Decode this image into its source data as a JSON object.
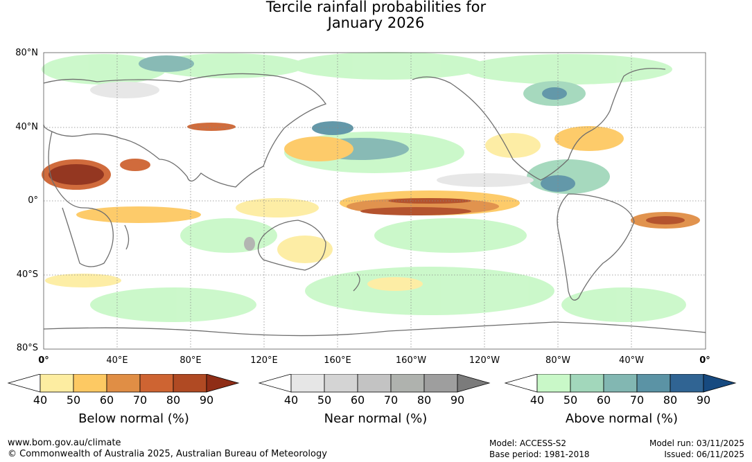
{
  "title": {
    "line1": "Tercile rainfall probabilities for",
    "line2": "January 2026"
  },
  "map": {
    "y_ticks": [
      "80°N",
      "40°N",
      "0°",
      "40°S",
      "80°S"
    ],
    "x_ticks": [
      "0°",
      "40°E",
      "80°E",
      "120°E",
      "160°E",
      "160°W",
      "120°W",
      "80°W",
      "40°W",
      "0°"
    ]
  },
  "legends": [
    {
      "name": "below",
      "title": "Below normal (%)",
      "labels": [
        "40",
        "50",
        "60",
        "70",
        "80",
        "90"
      ],
      "colors": [
        "#ffffff",
        "#fdeda1",
        "#fdc963",
        "#e08e45",
        "#ce6432",
        "#b04a23",
        "#8f2d16"
      ]
    },
    {
      "name": "near",
      "title": "Near normal (%)",
      "labels": [
        "40",
        "50",
        "60",
        "70",
        "80",
        "90"
      ],
      "colors": [
        "#ffffff",
        "#e6e6e6",
        "#d4d4d4",
        "#c3c3c3",
        "#afb2ae",
        "#9e9e9e",
        "#7b7b7b"
      ]
    },
    {
      "name": "above",
      "title": "Above normal (%)",
      "labels": [
        "40",
        "50",
        "60",
        "70",
        "80",
        "90"
      ],
      "colors": [
        "#ffffff",
        "#c9f8c8",
        "#a2d7bb",
        "#82b7b2",
        "#5b93a5",
        "#306493",
        "#174a80"
      ]
    }
  ],
  "footer": {
    "url": "www.bom.gov.au/climate",
    "copyright": "© Commonwealth of Australia 2025, Australian Bureau of Meteorology",
    "model": "Model: ACCESS-S2",
    "base_period": "Base period: 1981-2018",
    "model_run": "Model run: 03/11/2025",
    "issued": "Issued: 06/11/2025"
  }
}
